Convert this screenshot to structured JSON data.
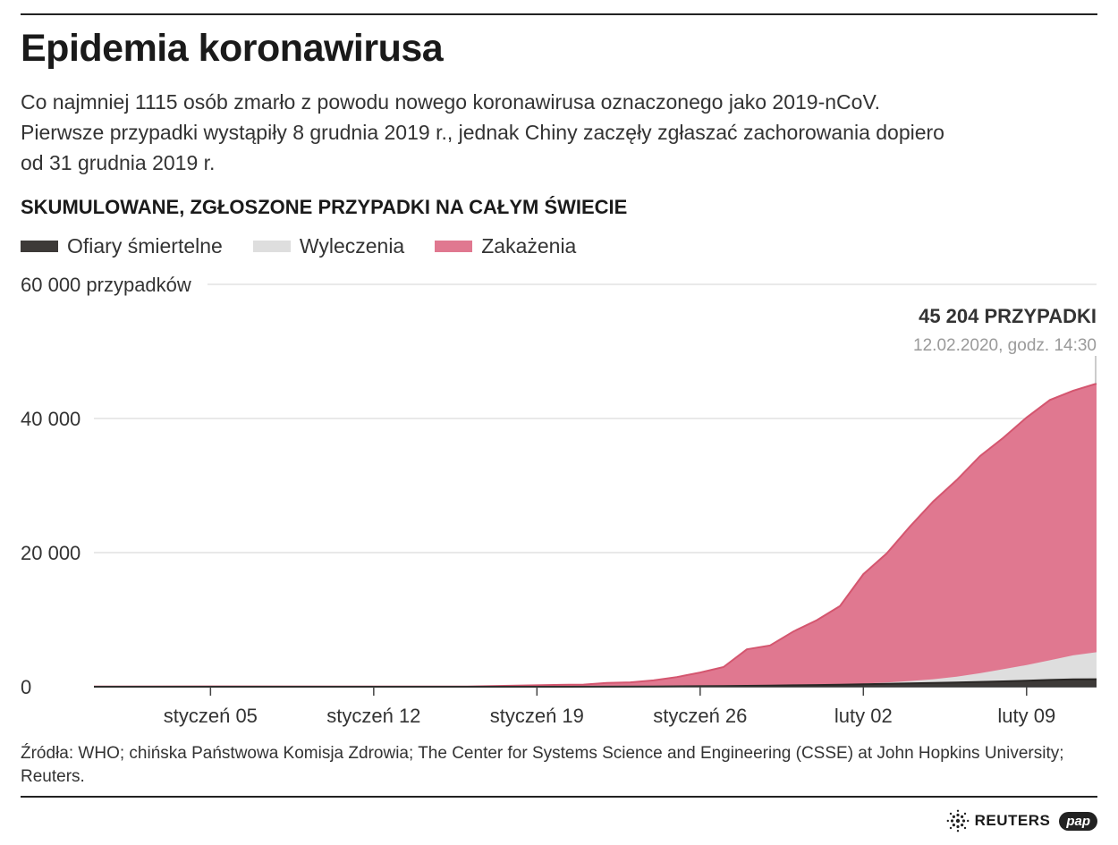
{
  "title": "Epidemia koronawirusa",
  "subtitle_lines": [
    "Co najmniej 1115 osób zmarło z powodu nowego koronawirusa oznaczonego jako 2019-nCoV.",
    "Pierwsze przypadki wystąpiły 8 grudnia 2019 r., jednak Chiny zaczęły zgłaszać zachorowania dopiero",
    "od 31 grudnia 2019 r."
  ],
  "chart_heading": "SKUMULOWANE, ZGŁOSZONE PRZYPADKI NA CAŁYM ŚWIECIE",
  "legend": [
    {
      "label": "Ofiary śmiertelne",
      "color": "#3d3a38"
    },
    {
      "label": "Wyleczenia",
      "color": "#dedede"
    },
    {
      "label": "Zakażenia",
      "color": "#e07890"
    }
  ],
  "annotation": {
    "value_label": "45 204 PRZYPADKI",
    "date_label": "12.02.2020, godz. 14:30"
  },
  "sources": "Źródła: WHO; chińska Państwowa Komisja Zdrowia; The Center for Systems Science and Engineering  (CSSE) at John Hopkins University; Reuters.",
  "logos": {
    "reuters": "REUTERS",
    "pap": "pap"
  },
  "chart_data": {
    "type": "area",
    "stacking": "overlapping",
    "x_start": "2019-12-31",
    "x_end": "2020-02-12",
    "y_top_label": "60 000 przypadków",
    "ylim": [
      0,
      60000
    ],
    "y_ticks": [
      {
        "value": 0,
        "label": "0"
      },
      {
        "value": 20000,
        "label": "20 000"
      },
      {
        "value": 40000,
        "label": "40 000"
      },
      {
        "value": 60000,
        "label": "60 000 przypadków"
      }
    ],
    "x_ticks": [
      {
        "date": "2020-01-05",
        "label": "styczeń 05"
      },
      {
        "date": "2020-01-12",
        "label": "styczeń 12"
      },
      {
        "date": "2020-01-19",
        "label": "styczeń 19"
      },
      {
        "date": "2020-01-26",
        "label": "styczeń 26"
      },
      {
        "date": "2020-02-02",
        "label": "luty 02"
      },
      {
        "date": "2020-02-09",
        "label": "luty 09"
      }
    ],
    "grid": true,
    "series": [
      {
        "name": "Zakażenia",
        "color": "#e07890",
        "points": [
          [
            "2019-12-31",
            27
          ],
          [
            "2020-01-05",
            59
          ],
          [
            "2020-01-11",
            41
          ],
          [
            "2020-01-16",
            45
          ],
          [
            "2020-01-20",
            282
          ],
          [
            "2020-01-21",
            314
          ],
          [
            "2020-01-22",
            555
          ],
          [
            "2020-01-23",
            653
          ],
          [
            "2020-01-24",
            941
          ],
          [
            "2020-01-25",
            1438
          ],
          [
            "2020-01-26",
            2118
          ],
          [
            "2020-01-27",
            2927
          ],
          [
            "2020-01-28",
            5578
          ],
          [
            "2020-01-29",
            6165
          ],
          [
            "2020-01-30",
            8235
          ],
          [
            "2020-01-31",
            9925
          ],
          [
            "2020-02-01",
            12038
          ],
          [
            "2020-02-02",
            16787
          ],
          [
            "2020-02-03",
            19881
          ],
          [
            "2020-02-04",
            23892
          ],
          [
            "2020-02-05",
            27636
          ],
          [
            "2020-02-06",
            30818
          ],
          [
            "2020-02-07",
            34392
          ],
          [
            "2020-02-08",
            37121
          ],
          [
            "2020-02-09",
            40151
          ],
          [
            "2020-02-10",
            42763
          ],
          [
            "2020-02-11",
            44140
          ],
          [
            "2020-02-12",
            45204
          ]
        ]
      },
      {
        "name": "Wyleczenia",
        "color": "#dedede",
        "points": [
          [
            "2019-12-31",
            0
          ],
          [
            "2020-01-20",
            25
          ],
          [
            "2020-01-24",
            36
          ],
          [
            "2020-01-26",
            52
          ],
          [
            "2020-01-27",
            61
          ],
          [
            "2020-01-28",
            107
          ],
          [
            "2020-01-29",
            126
          ],
          [
            "2020-01-30",
            143
          ],
          [
            "2020-01-31",
            222
          ],
          [
            "2020-02-01",
            284
          ],
          [
            "2020-02-02",
            472
          ],
          [
            "2020-02-03",
            623
          ],
          [
            "2020-02-04",
            852
          ],
          [
            "2020-02-05",
            1124
          ],
          [
            "2020-02-06",
            1487
          ],
          [
            "2020-02-07",
            2011
          ],
          [
            "2020-02-08",
            2616
          ],
          [
            "2020-02-09",
            3244
          ],
          [
            "2020-02-10",
            3946
          ],
          [
            "2020-02-11",
            4683
          ],
          [
            "2020-02-12",
            5150
          ]
        ]
      },
      {
        "name": "Ofiary śmiertelne",
        "color": "#3d3a38",
        "points": [
          [
            "2019-12-31",
            0
          ],
          [
            "2020-01-11",
            1
          ],
          [
            "2020-01-20",
            6
          ],
          [
            "2020-01-22",
            17
          ],
          [
            "2020-01-24",
            41
          ],
          [
            "2020-01-26",
            80
          ],
          [
            "2020-01-27",
            106
          ],
          [
            "2020-01-28",
            132
          ],
          [
            "2020-01-29",
            170
          ],
          [
            "2020-01-30",
            213
          ],
          [
            "2020-01-31",
            259
          ],
          [
            "2020-02-01",
            304
          ],
          [
            "2020-02-02",
            362
          ],
          [
            "2020-02-03",
            426
          ],
          [
            "2020-02-04",
            492
          ],
          [
            "2020-02-05",
            564
          ],
          [
            "2020-02-06",
            634
          ],
          [
            "2020-02-07",
            719
          ],
          [
            "2020-02-08",
            806
          ],
          [
            "2020-02-09",
            906
          ],
          [
            "2020-02-10",
            1013
          ],
          [
            "2020-02-11",
            1113
          ],
          [
            "2020-02-12",
            1115
          ]
        ]
      }
    ]
  }
}
